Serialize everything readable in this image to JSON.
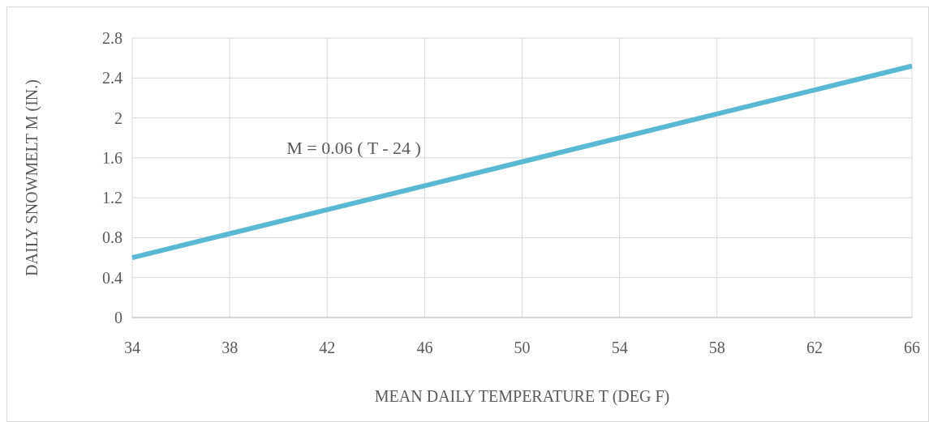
{
  "chart_data": {
    "type": "line",
    "xlabel": "MEAN DAILY TEMPERATURE T (DEG F)",
    "ylabel": "DAILY SNOWMELT M (IN.)",
    "x": [
      34,
      38,
      42,
      46,
      50,
      54,
      58,
      62,
      66
    ],
    "series": [
      {
        "color": "#5bb8d4",
        "values": [
          0.6,
          0.84,
          1.08,
          1.32,
          1.56,
          1.8,
          2.04,
          2.28,
          2.52
        ]
      }
    ],
    "xlim": [
      34,
      66
    ],
    "xticks": [
      34,
      38,
      42,
      46,
      50,
      54,
      58,
      62,
      66
    ],
    "ylim": [
      0,
      2.8
    ],
    "yticks": [
      0,
      {
        "value": 0.4,
        "label": "0.4"
      },
      {
        "value": 0.8,
        "label": "0.8"
      },
      {
        "value": 1.2,
        "label": "1.2"
      },
      {
        "value": 1.6,
        "label": "1.6"
      },
      2,
      {
        "value": 2.4,
        "label": "2.4"
      },
      {
        "value": 2.8,
        "label": "2.8"
      }
    ],
    "grid": true,
    "marker": "none",
    "line_style": "solid",
    "annotations": [
      "M = 0.06 ( T - 24 )"
    ]
  }
}
